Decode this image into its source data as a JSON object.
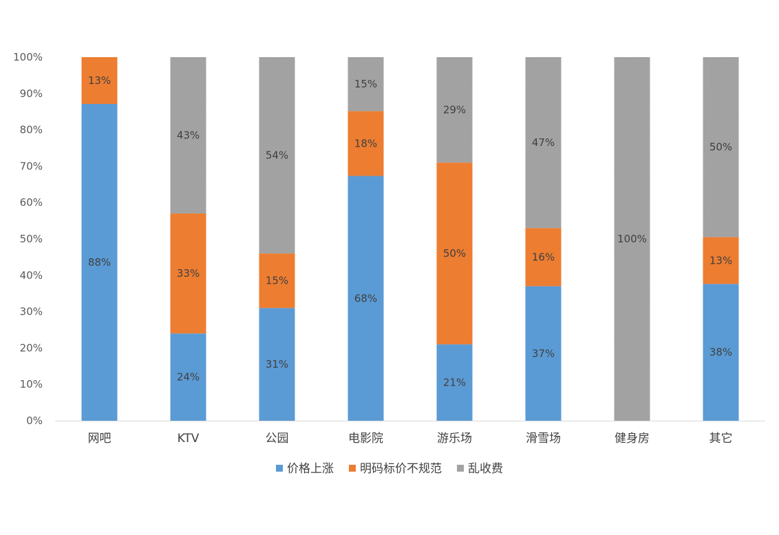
{
  "chart_data": {
    "type": "bar",
    "stacked": true,
    "normalized": true,
    "categories": [
      "网吧",
      "KTV",
      "公园",
      "电影院",
      "游乐场",
      "滑雪场",
      "健身房",
      "其它"
    ],
    "series": [
      {
        "name": "价格上涨",
        "color": "#5B9BD5",
        "values": [
          88,
          24,
          31,
          68,
          21,
          37,
          0,
          38
        ],
        "labels": [
          "88%",
          "24%",
          "31%",
          "68%",
          "21%",
          "37%",
          "",
          "38%"
        ]
      },
      {
        "name": "明码标价不规范",
        "color": "#ED7D31",
        "values": [
          13,
          33,
          15,
          18,
          50,
          16,
          0,
          13
        ],
        "labels": [
          "13%",
          "33%",
          "15%",
          "18%",
          "50%",
          "16%",
          "",
          "13%"
        ]
      },
      {
        "name": "乱收费",
        "color": "#A5A5A5",
        "values": [
          0,
          43,
          54,
          15,
          29,
          47,
          100,
          50
        ],
        "labels": [
          "",
          "43%",
          "54%",
          "15%",
          "29%",
          "47%",
          "100%",
          "50%"
        ]
      }
    ],
    "y_ticks": [
      "0%",
      "10%",
      "20%",
      "30%",
      "40%",
      "50%",
      "60%",
      "70%",
      "80%",
      "90%",
      "100%"
    ],
    "ylim": [
      0,
      100
    ],
    "grid": false,
    "legend": "bottom",
    "title": "",
    "xlabel": "",
    "ylabel": ""
  }
}
